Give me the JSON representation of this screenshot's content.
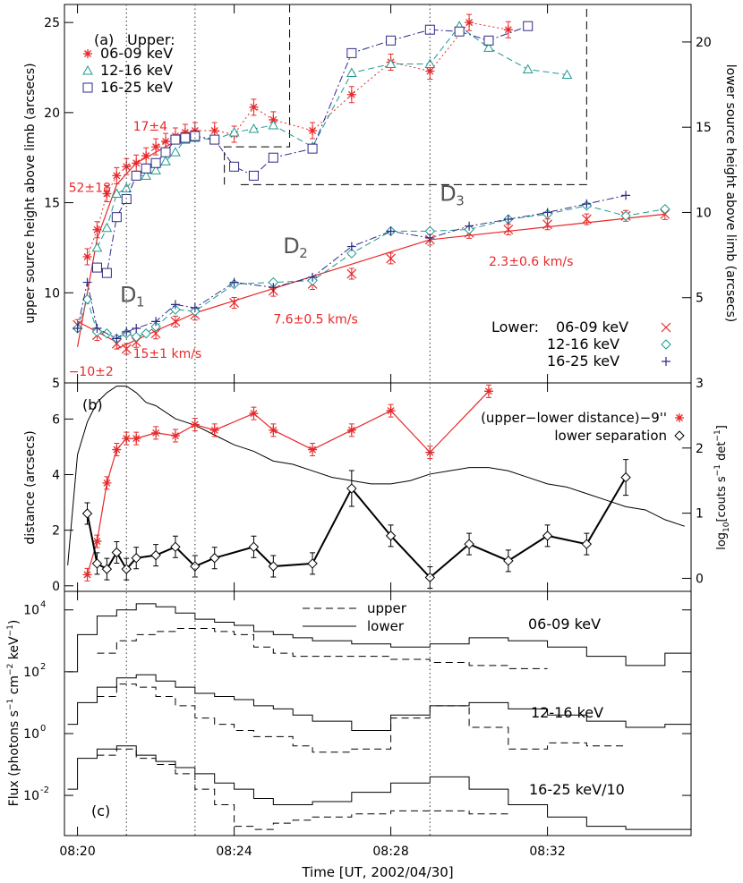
{
  "colors": {
    "red": "#e8282a",
    "green": "#1f9a8e",
    "purple": "#2e2a86",
    "black": "#000000",
    "dotted": "#555555"
  },
  "chart_data": [
    {
      "panel": "a",
      "type": "scatter",
      "panel_label": "(a)",
      "upper_legend_title": "Upper:",
      "lower_legend_title": "Lower:",
      "ylabel_left": "upper source height above limb (arcsecs)",
      "ylabel_right": "lower source height above limb (arcsecs)",
      "ylim_left": [
        5,
        26
      ],
      "ylim_right": [
        0,
        22.2
      ],
      "yticks_left": [
        "5",
        "10",
        "15",
        "20",
        "25"
      ],
      "yticks_right": [
        "5",
        "10",
        "15",
        "20"
      ],
      "upper_series": [
        {
          "name": "06-09 keV",
          "marker": "asterisk",
          "color": "red",
          "line": "dotted",
          "x": [
            "08:20:15",
            "08:20:30",
            "08:20:45",
            "08:21:00",
            "08:21:15",
            "08:21:30",
            "08:21:45",
            "08:22:00",
            "08:22:15",
            "08:22:30",
            "08:22:45",
            "08:23:00",
            "08:23:30",
            "08:24:00",
            "08:24:30",
            "08:25:00",
            "08:26:00",
            "08:27:00",
            "08:28:00",
            "08:29:00",
            "08:30:00",
            "08:31:00"
          ],
          "y": [
            12.0,
            13.5,
            15.5,
            16.5,
            17.0,
            17.2,
            17.6,
            18.1,
            18.4,
            18.7,
            18.9,
            19.0,
            19.0,
            18.8,
            20.3,
            19.6,
            19.0,
            21.0,
            22.8,
            22.3,
            25.0,
            24.6
          ]
        },
        {
          "name": "12-16 keV",
          "marker": "triangle",
          "color": "green",
          "line": "dashed",
          "x": [
            "08:20:30",
            "08:20:45",
            "08:21:00",
            "08:21:15",
            "08:21:30",
            "08:21:45",
            "08:22:00",
            "08:22:15",
            "08:22:30",
            "08:22:45",
            "08:23:00",
            "08:23:30",
            "08:24:00",
            "08:24:30",
            "08:25:00",
            "08:26:00",
            "08:27:00",
            "08:28:00",
            "08:29:00",
            "08:29:45",
            "08:30:30",
            "08:31:30",
            "08:32:30"
          ],
          "y": [
            12.5,
            13.6,
            15.5,
            15.8,
            16.5,
            16.5,
            16.8,
            17.3,
            17.8,
            18.5,
            18.6,
            18.5,
            18.9,
            19.1,
            19.3,
            18.1,
            22.2,
            22.7,
            22.7,
            24.8,
            23.6,
            22.4,
            22.1
          ]
        },
        {
          "name": "16-25 keV",
          "marker": "square",
          "color": "purple",
          "line": "dashdot",
          "x": [
            "08:20:30",
            "08:20:45",
            "08:21:00",
            "08:21:15",
            "08:21:30",
            "08:21:45",
            "08:22:00",
            "08:22:15",
            "08:22:30",
            "08:22:45",
            "08:23:00",
            "08:23:30",
            "08:24:00",
            "08:24:30",
            "08:25:00",
            "08:26:00",
            "08:27:00",
            "08:28:00",
            "08:29:00",
            "08:29:45",
            "08:30:30",
            "08:31:30"
          ],
          "y": [
            11.4,
            11.1,
            14.2,
            15.2,
            16.5,
            16.9,
            17.2,
            17.8,
            18.5,
            18.6,
            18.7,
            18.5,
            17.0,
            16.5,
            17.5,
            18.0,
            23.3,
            24.0,
            24.6,
            24.5,
            24.0,
            24.8
          ]
        }
      ],
      "lower_series": [
        {
          "name": "06-09 keV",
          "marker": "cross",
          "color": "red",
          "x": [
            "08:20:00",
            "08:20:30",
            "08:21:00",
            "08:21:15",
            "08:21:30",
            "08:22:00",
            "08:22:30",
            "08:23:00",
            "08:24:00",
            "08:25:00",
            "08:26:00",
            "08:27:00",
            "08:28:00",
            "08:29:00",
            "08:30:00",
            "08:31:00",
            "08:32:00",
            "08:33:00",
            "08:34:00",
            "08:35:00"
          ],
          "y": [
            3.4,
            2.8,
            2.3,
            2.0,
            2.4,
            2.9,
            3.6,
            4.0,
            4.7,
            5.4,
            5.8,
            6.4,
            7.3,
            8.4,
            8.8,
            9.0,
            9.3,
            9.6,
            9.8,
            9.9
          ]
        },
        {
          "name": "12-16 keV",
          "marker": "diamond",
          "color": "green",
          "x": [
            "08:20:00",
            "08:20:15",
            "08:20:30",
            "08:20:45",
            "08:21:00",
            "08:21:15",
            "08:21:30",
            "08:21:45",
            "08:22:00",
            "08:22:30",
            "08:23:00",
            "08:24:00",
            "08:25:00",
            "08:26:00",
            "08:27:00",
            "08:28:00",
            "08:29:00",
            "08:30:00",
            "08:31:00",
            "08:32:00",
            "08:33:00",
            "08:34:00",
            "08:35:00"
          ],
          "y": [
            3.2,
            4.9,
            3.0,
            2.9,
            2.6,
            2.9,
            2.7,
            2.9,
            3.3,
            4.3,
            4.2,
            5.8,
            5.9,
            6.0,
            7.6,
            8.9,
            8.9,
            9.0,
            9.6,
            9.9,
            10.4,
            9.8,
            10.2
          ]
        },
        {
          "name": "16-25 keV",
          "marker": "plus",
          "color": "purple",
          "x": [
            "08:20:00",
            "08:20:15",
            "08:20:30",
            "08:21:00",
            "08:21:15",
            "08:21:30",
            "08:22:00",
            "08:22:30",
            "08:23:00",
            "08:24:00",
            "08:25:00",
            "08:26:00",
            "08:27:00",
            "08:28:00",
            "08:29:00",
            "08:30:00",
            "08:31:00",
            "08:32:00",
            "08:33:00",
            "08:34:00"
          ],
          "y": [
            3.2,
            5.9,
            3.2,
            2.6,
            3.0,
            3.2,
            3.6,
            4.6,
            4.4,
            5.9,
            5.6,
            6.2,
            8.0,
            8.9,
            8.5,
            9.2,
            9.6,
            10.0,
            10.5,
            11.0
          ]
        }
      ],
      "fit_lines": [
        {
          "label": "52±18",
          "x": [
            "08:20:00",
            "08:20:30",
            "08:21:00",
            "08:21:30"
          ],
          "y": [
            7.0,
            13.0,
            16.0,
            17.2
          ]
        },
        {
          "label": "17±4",
          "x": [
            "08:21:30",
            "08:23:00"
          ],
          "y": [
            17.2,
            19.0
          ]
        },
        {
          "label": "−10±2",
          "x": [
            "08:20:00",
            "08:21:00"
          ],
          "y": [
            3.6,
            2.4
          ]
        },
        {
          "label": "15±1 km/s",
          "x": [
            "08:21:00",
            "08:23:00"
          ],
          "y": [
            2.0,
            4.1
          ]
        },
        {
          "label": "7.6±0.5 km/s",
          "x": [
            "08:23:00",
            "08:29:00"
          ],
          "y": [
            4.1,
            8.4
          ]
        },
        {
          "label": "2.3±0.6 km/s",
          "x": [
            "08:29:00",
            "08:35:00"
          ],
          "y": [
            8.4,
            9.9
          ]
        }
      ],
      "annotations": [
        "D",
        "1",
        "D",
        "2",
        "D",
        "3"
      ]
    },
    {
      "panel": "b",
      "type": "line",
      "panel_label": "(b)",
      "ylabel_left": "distance (arcsecs)",
      "ylabel_right": "log10[couts s−1 det−1]",
      "ylabel_right_parts": [
        "log",
        "10",
        "[couts s",
        "−1",
        " det",
        "−1",
        "]"
      ],
      "ylim_left": [
        -0.2,
        7.3
      ],
      "ylim_right": [
        -0.2,
        3.0
      ],
      "yticks_left": [
        "0",
        "2",
        "4",
        "6"
      ],
      "yticks_right": [
        "0",
        "1",
        "2",
        "3"
      ],
      "series": [
        {
          "name": "(upper−lower distance)−9''",
          "marker": "asterisk",
          "color": "red",
          "x": [
            "08:20:15",
            "08:20:30",
            "08:20:45",
            "08:21:00",
            "08:21:15",
            "08:21:30",
            "08:22:00",
            "08:22:30",
            "08:23:00",
            "08:23:30",
            "08:24:30",
            "08:25:00",
            "08:26:00",
            "08:27:00",
            "08:28:00",
            "08:29:00",
            "08:30:30"
          ],
          "y": [
            0.4,
            1.6,
            3.7,
            4.9,
            5.3,
            5.3,
            5.5,
            5.4,
            5.8,
            5.6,
            6.2,
            5.6,
            4.9,
            5.6,
            6.3,
            4.8,
            7.0
          ]
        },
        {
          "name": "lower separation",
          "marker": "diamond",
          "color": "black",
          "x": [
            "08:20:15",
            "08:20:30",
            "08:20:45",
            "08:21:00",
            "08:21:15",
            "08:21:30",
            "08:22:00",
            "08:22:30",
            "08:23:00",
            "08:23:30",
            "08:24:30",
            "08:25:00",
            "08:26:00",
            "08:27:00",
            "08:28:00",
            "08:29:00",
            "08:30:00",
            "08:31:00",
            "08:32:00",
            "08:33:00",
            "08:34:00"
          ],
          "y": [
            2.6,
            0.8,
            0.6,
            1.2,
            0.6,
            1.0,
            1.1,
            1.4,
            0.7,
            1.0,
            1.4,
            0.7,
            0.8,
            3.5,
            1.8,
            0.3,
            1.5,
            0.9,
            1.8,
            1.5,
            3.9
          ]
        }
      ],
      "lightcurve": {
        "x": [
          "08:19:45",
          "08:20:00",
          "08:20:15",
          "08:20:30",
          "08:20:45",
          "08:21:00",
          "08:21:15",
          "08:21:30",
          "08:21:45",
          "08:22:00",
          "08:22:30",
          "08:23:00",
          "08:23:30",
          "08:24:00",
          "08:24:30",
          "08:25:00",
          "08:25:30",
          "08:26:00",
          "08:26:30",
          "08:27:00",
          "08:27:30",
          "08:28:00",
          "08:28:30",
          "08:29:00",
          "08:29:30",
          "08:30:00",
          "08:30:30",
          "08:31:00",
          "08:31:30",
          "08:32:00",
          "08:32:30",
          "08:33:00",
          "08:33:30",
          "08:34:00",
          "08:34:30",
          "08:35:00",
          "08:35:30"
        ],
        "y": [
          0.2,
          1.9,
          2.4,
          2.7,
          2.85,
          2.95,
          2.95,
          2.85,
          2.7,
          2.65,
          2.45,
          2.35,
          2.2,
          2.05,
          1.95,
          1.8,
          1.75,
          1.65,
          1.55,
          1.5,
          1.45,
          1.45,
          1.5,
          1.6,
          1.65,
          1.7,
          1.7,
          1.65,
          1.55,
          1.45,
          1.4,
          1.3,
          1.2,
          1.1,
          1.05,
          0.9,
          0.8
        ]
      }
    },
    {
      "panel": "c",
      "type": "line",
      "panel_label": "(c)",
      "ylabel_left": "Flux (photons s−1 cm−2 keV−1)",
      "ylabel_left_parts": [
        "Flux (photons s",
        "−1",
        " cm",
        "−2",
        " keV",
        "−1",
        ")"
      ],
      "scale": "log",
      "ylim_log10": [
        -3.3,
        4.6
      ],
      "yticks": [
        {
          "base": "10",
          "exp": "4",
          "v": 4
        },
        {
          "base": "10",
          "exp": "2",
          "v": 2
        },
        {
          "base": "10",
          "exp": "0",
          "v": 0
        },
        {
          "base": "10",
          "exp": "-2",
          "v": -2
        }
      ],
      "legend": {
        "upper": "upper",
        "lower": "lower"
      },
      "band_labels": [
        "06-09 keV",
        "12-16 keV",
        "16-25 keV/10"
      ],
      "bin_edges": [
        "08:19:45",
        "08:20:00",
        "08:20:30",
        "08:21:00",
        "08:21:30",
        "08:22:00",
        "08:22:30",
        "08:23:00",
        "08:23:30",
        "08:24:00",
        "08:24:30",
        "08:25:00",
        "08:25:30",
        "08:26:00",
        "08:27:00",
        "08:28:00",
        "08:29:00",
        "08:30:00",
        "08:31:00",
        "08:32:00",
        "08:33:00",
        "08:34:00",
        "08:35:00",
        "08:35:40"
      ],
      "series": [
        {
          "name": "06-09 keV lower",
          "style": "solid",
          "log10": [
            2.0,
            3.2,
            3.8,
            4.0,
            4.2,
            4.1,
            3.9,
            3.7,
            3.6,
            3.5,
            3.3,
            3.2,
            3.1,
            3.0,
            2.9,
            2.8,
            2.9,
            3.1,
            3.0,
            2.8,
            2.5,
            2.2,
            2.6
          ]
        },
        {
          "name": "06-09 keV upper",
          "style": "dashed",
          "log10": [
            null,
            null,
            2.6,
            3.0,
            3.2,
            3.3,
            3.4,
            3.4,
            3.3,
            3.2,
            2.8,
            2.6,
            2.5,
            2.5,
            2.5,
            2.4,
            2.3,
            2.2,
            2.1,
            null,
            null,
            null,
            null
          ]
        },
        {
          "name": "12-16 keV lower",
          "style": "solid",
          "log10": [
            0.3,
            1.0,
            1.5,
            1.8,
            1.9,
            1.7,
            1.5,
            1.3,
            1.2,
            1.1,
            0.9,
            0.8,
            0.6,
            0.4,
            0.1,
            0.6,
            0.9,
            1.0,
            0.8,
            0.6,
            0.4,
            0.2,
            0.3
          ]
        },
        {
          "name": "12-16 keV upper",
          "style": "dashed",
          "log10": [
            null,
            null,
            1.2,
            1.6,
            1.5,
            1.2,
            0.9,
            0.5,
            0.3,
            0.1,
            -0.1,
            -0.1,
            -0.4,
            -0.6,
            -0.5,
            0.5,
            0.9,
            0.2,
            -0.5,
            -0.3,
            -0.4,
            null,
            null
          ]
        },
        {
          "name": "16-25 keV/10 lower",
          "style": "solid",
          "log10": [
            -1.8,
            -0.8,
            -0.5,
            -0.4,
            -0.7,
            -0.9,
            -1.1,
            -1.3,
            -1.6,
            -1.8,
            -2.1,
            -2.3,
            -2.3,
            -2.2,
            -1.9,
            -1.6,
            -1.4,
            -1.8,
            -2.3,
            -2.7,
            -3.0,
            -3.1,
            -3.1
          ]
        },
        {
          "name": "16-25 keV/10 upper",
          "style": "dashed",
          "log10": [
            null,
            null,
            -0.7,
            -0.5,
            -0.8,
            -1.0,
            -1.3,
            -1.8,
            -2.3,
            -3.0,
            -3.1,
            -2.9,
            -2.8,
            -2.7,
            -2.6,
            -2.5,
            -2.5,
            -2.6,
            null,
            null,
            null,
            null,
            null
          ]
        }
      ],
      "xlabel": "Time [UT, 2002/04/30]",
      "xticks": [
        "08:20",
        "08:24",
        "08:28",
        "08:32"
      ]
    }
  ],
  "vertical_dotted_times": [
    "08:21:15",
    "08:23:00",
    "08:29:00"
  ]
}
